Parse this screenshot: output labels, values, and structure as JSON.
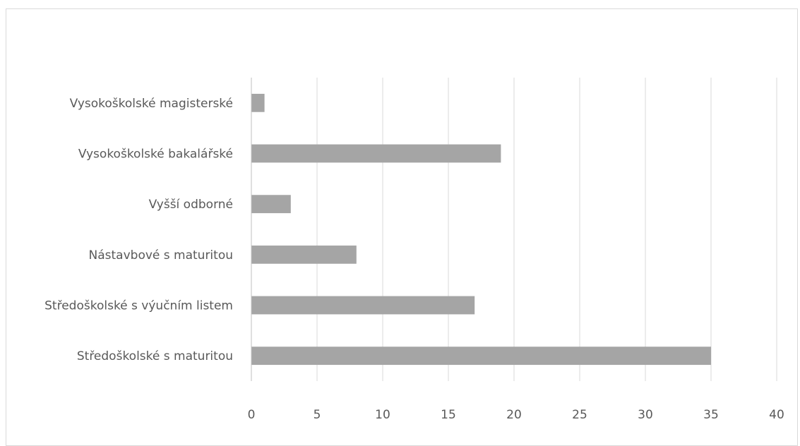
{
  "chart_data": {
    "type": "bar",
    "orientation": "horizontal",
    "title": "",
    "xlabel": "",
    "ylabel": "",
    "categories": [
      "Vysokoškolské magisterské",
      "Vysokoškolské bakalářské",
      "Vyšší odborné",
      "Nástavbové s maturitou",
      "Středoškolské s výučním listem",
      "Středoškolské s maturitou"
    ],
    "values": [
      1,
      19,
      3,
      8,
      17,
      35
    ],
    "xlim": [
      0,
      40
    ],
    "xticks": [
      0,
      5,
      10,
      15,
      20,
      25,
      30,
      35,
      40
    ],
    "grid": "vertical",
    "legend": "none",
    "colors": {
      "bar": "#a5a5a5",
      "grid": "#d9d9d9",
      "axis": "#bfbfbf",
      "text": "#595959"
    }
  }
}
